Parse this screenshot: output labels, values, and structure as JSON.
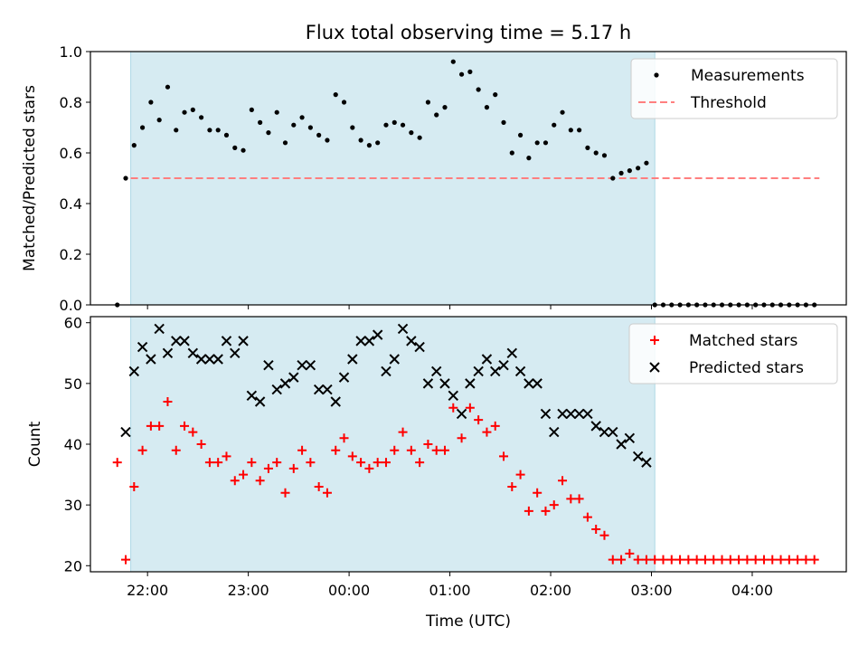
{
  "title": "Flux total observing time = 5.17 h",
  "colors": {
    "shade": "#add8e6",
    "threshold": "#ff7f7f",
    "matched": "#ff0000",
    "predicted": "#000000",
    "measurement": "#000000"
  },
  "chart_data": [
    {
      "type": "scatter",
      "ylabel": "Matched/Predicted stars",
      "xlabel": "",
      "ylim": [
        0,
        1.0
      ],
      "yticks": [
        "0.0",
        "0.2",
        "0.4",
        "0.6",
        "0.8",
        "1.0"
      ],
      "legend": {
        "position": "top-right",
        "entries": [
          "Measurements",
          "Threshold"
        ]
      },
      "shaded_interval": [
        "21:50",
        "03:02"
      ],
      "threshold": {
        "value": 0.5,
        "x_range": [
          "21:50",
          "04:40"
        ]
      },
      "series": [
        {
          "name": "Measurements",
          "x": [
            "21:42",
            "21:47",
            "21:52",
            "21:57",
            "22:02",
            "22:07",
            "22:12",
            "22:17",
            "22:22",
            "22:27",
            "22:32",
            "22:37",
            "22:42",
            "22:47",
            "22:52",
            "22:57",
            "23:02",
            "23:07",
            "23:12",
            "23:17",
            "23:22",
            "23:27",
            "23:32",
            "23:37",
            "23:42",
            "23:47",
            "23:52",
            "23:57",
            "00:02",
            "00:07",
            "00:12",
            "00:17",
            "00:22",
            "00:27",
            "00:32",
            "00:37",
            "00:42",
            "00:47",
            "00:52",
            "00:57",
            "01:02",
            "01:07",
            "01:12",
            "01:17",
            "01:22",
            "01:27",
            "01:32",
            "01:37",
            "01:42",
            "01:47",
            "01:52",
            "01:57",
            "02:02",
            "02:07",
            "02:12",
            "02:17",
            "02:22",
            "02:27",
            "02:32",
            "02:37",
            "02:42",
            "02:47",
            "02:52",
            "02:57",
            "03:02",
            "03:07",
            "03:12",
            "03:17",
            "03:22",
            "03:27",
            "03:32",
            "03:37",
            "03:42",
            "03:47",
            "03:52",
            "03:57",
            "04:02",
            "04:07",
            "04:12",
            "04:17",
            "04:22",
            "04:27",
            "04:32",
            "04:37"
          ],
          "y": [
            0.0,
            0.5,
            0.63,
            0.7,
            0.8,
            0.73,
            0.86,
            0.69,
            0.76,
            0.77,
            0.74,
            0.69,
            0.69,
            0.67,
            0.62,
            0.61,
            0.77,
            0.72,
            0.68,
            0.76,
            0.64,
            0.71,
            0.74,
            0.7,
            0.67,
            0.65,
            0.83,
            0.8,
            0.7,
            0.65,
            0.63,
            0.64,
            0.71,
            0.72,
            0.71,
            0.68,
            0.66,
            0.8,
            0.75,
            0.78,
            0.96,
            0.91,
            0.92,
            0.85,
            0.78,
            0.83,
            0.72,
            0.6,
            0.67,
            0.58,
            0.64,
            0.64,
            0.71,
            0.76,
            0.69,
            0.69,
            0.62,
            0.6,
            0.59,
            0.5,
            0.52,
            0.53,
            0.54,
            0.56,
            0.0,
            0.0,
            0.0,
            0.0,
            0.0,
            0.0,
            0.0,
            0.0,
            0.0,
            0.0,
            0.0,
            0.0,
            0.0,
            0.0,
            0.0,
            0.0,
            0.0,
            0.0,
            0.0,
            0.0
          ]
        }
      ]
    },
    {
      "type": "scatter",
      "ylabel": "Count",
      "xlabel": "Time (UTC)",
      "ylim": [
        19,
        61
      ],
      "yticks": [
        "20",
        "30",
        "40",
        "50",
        "60"
      ],
      "xticks": [
        "22:00",
        "23:00",
        "00:00",
        "01:00",
        "02:00",
        "03:00",
        "04:00"
      ],
      "legend": {
        "position": "top-right",
        "entries": [
          "Matched stars",
          "Predicted stars"
        ]
      },
      "shaded_interval": [
        "21:50",
        "03:02"
      ],
      "series": [
        {
          "name": "Matched stars",
          "marker": "plus",
          "x": [
            "21:42",
            "21:47",
            "21:52",
            "21:57",
            "22:02",
            "22:07",
            "22:12",
            "22:17",
            "22:22",
            "22:27",
            "22:32",
            "22:37",
            "22:42",
            "22:47",
            "22:52",
            "22:57",
            "23:02",
            "23:07",
            "23:12",
            "23:17",
            "23:22",
            "23:27",
            "23:32",
            "23:37",
            "23:42",
            "23:47",
            "23:52",
            "23:57",
            "00:02",
            "00:07",
            "00:12",
            "00:17",
            "00:22",
            "00:27",
            "00:32",
            "00:37",
            "00:42",
            "00:47",
            "00:52",
            "00:57",
            "01:02",
            "01:07",
            "01:12",
            "01:17",
            "01:22",
            "01:27",
            "01:32",
            "01:37",
            "01:42",
            "01:47",
            "01:52",
            "01:57",
            "02:02",
            "02:07",
            "02:12",
            "02:17",
            "02:22",
            "02:27",
            "02:32",
            "02:37",
            "02:42",
            "02:47",
            "02:52",
            "02:57",
            "03:02",
            "03:07",
            "03:12",
            "03:17",
            "03:22",
            "03:27",
            "03:32",
            "03:37",
            "03:42",
            "03:47",
            "03:52",
            "03:57",
            "04:02",
            "04:07",
            "04:12",
            "04:17",
            "04:22",
            "04:27",
            "04:32",
            "04:37"
          ],
          "y": [
            37,
            21,
            33,
            39,
            43,
            43,
            47,
            39,
            43,
            42,
            40,
            37,
            37,
            38,
            34,
            35,
            37,
            34,
            36,
            37,
            32,
            36,
            39,
            37,
            33,
            32,
            39,
            41,
            38,
            37,
            36,
            37,
            37,
            39,
            42,
            39,
            37,
            40,
            39,
            39,
            46,
            41,
            46,
            44,
            42,
            43,
            38,
            33,
            35,
            29,
            32,
            29,
            30,
            34,
            31,
            31,
            28,
            26,
            25,
            21,
            21,
            22,
            21,
            21,
            21,
            21,
            21,
            21,
            21,
            21,
            21,
            21,
            21,
            21,
            21,
            21,
            21,
            21,
            21,
            21,
            21,
            21,
            21,
            21
          ]
        },
        {
          "name": "Predicted stars",
          "marker": "x",
          "x": [
            "21:47",
            "21:52",
            "21:57",
            "22:02",
            "22:07",
            "22:12",
            "22:17",
            "22:22",
            "22:27",
            "22:32",
            "22:37",
            "22:42",
            "22:47",
            "22:52",
            "22:57",
            "23:02",
            "23:07",
            "23:12",
            "23:17",
            "23:22",
            "23:27",
            "23:32",
            "23:37",
            "23:42",
            "23:47",
            "23:52",
            "23:57",
            "00:02",
            "00:07",
            "00:12",
            "00:17",
            "00:22",
            "00:27",
            "00:32",
            "00:37",
            "00:42",
            "00:47",
            "00:52",
            "00:57",
            "01:02",
            "01:07",
            "01:12",
            "01:17",
            "01:22",
            "01:27",
            "01:32",
            "01:37",
            "01:42",
            "01:47",
            "01:52",
            "01:57",
            "02:02",
            "02:07",
            "02:12",
            "02:17",
            "02:22",
            "02:27",
            "02:32",
            "02:37",
            "02:42",
            "02:47",
            "02:52",
            "02:57",
            "03:02"
          ],
          "y": [
            42,
            52,
            56,
            54,
            59,
            55,
            57,
            57,
            55,
            54,
            54,
            54,
            57,
            55,
            57,
            48,
            47,
            53,
            49,
            50,
            51,
            53,
            53,
            49,
            49,
            47,
            51,
            54,
            57,
            57,
            58,
            52,
            54,
            59,
            57,
            56,
            50,
            52,
            50,
            48,
            45,
            50,
            52,
            54,
            52,
            53,
            55,
            52,
            50,
            50,
            45,
            42,
            45,
            45,
            45,
            45,
            43,
            42,
            42,
            40,
            41,
            38,
            37,
            null
          ]
        }
      ]
    }
  ]
}
